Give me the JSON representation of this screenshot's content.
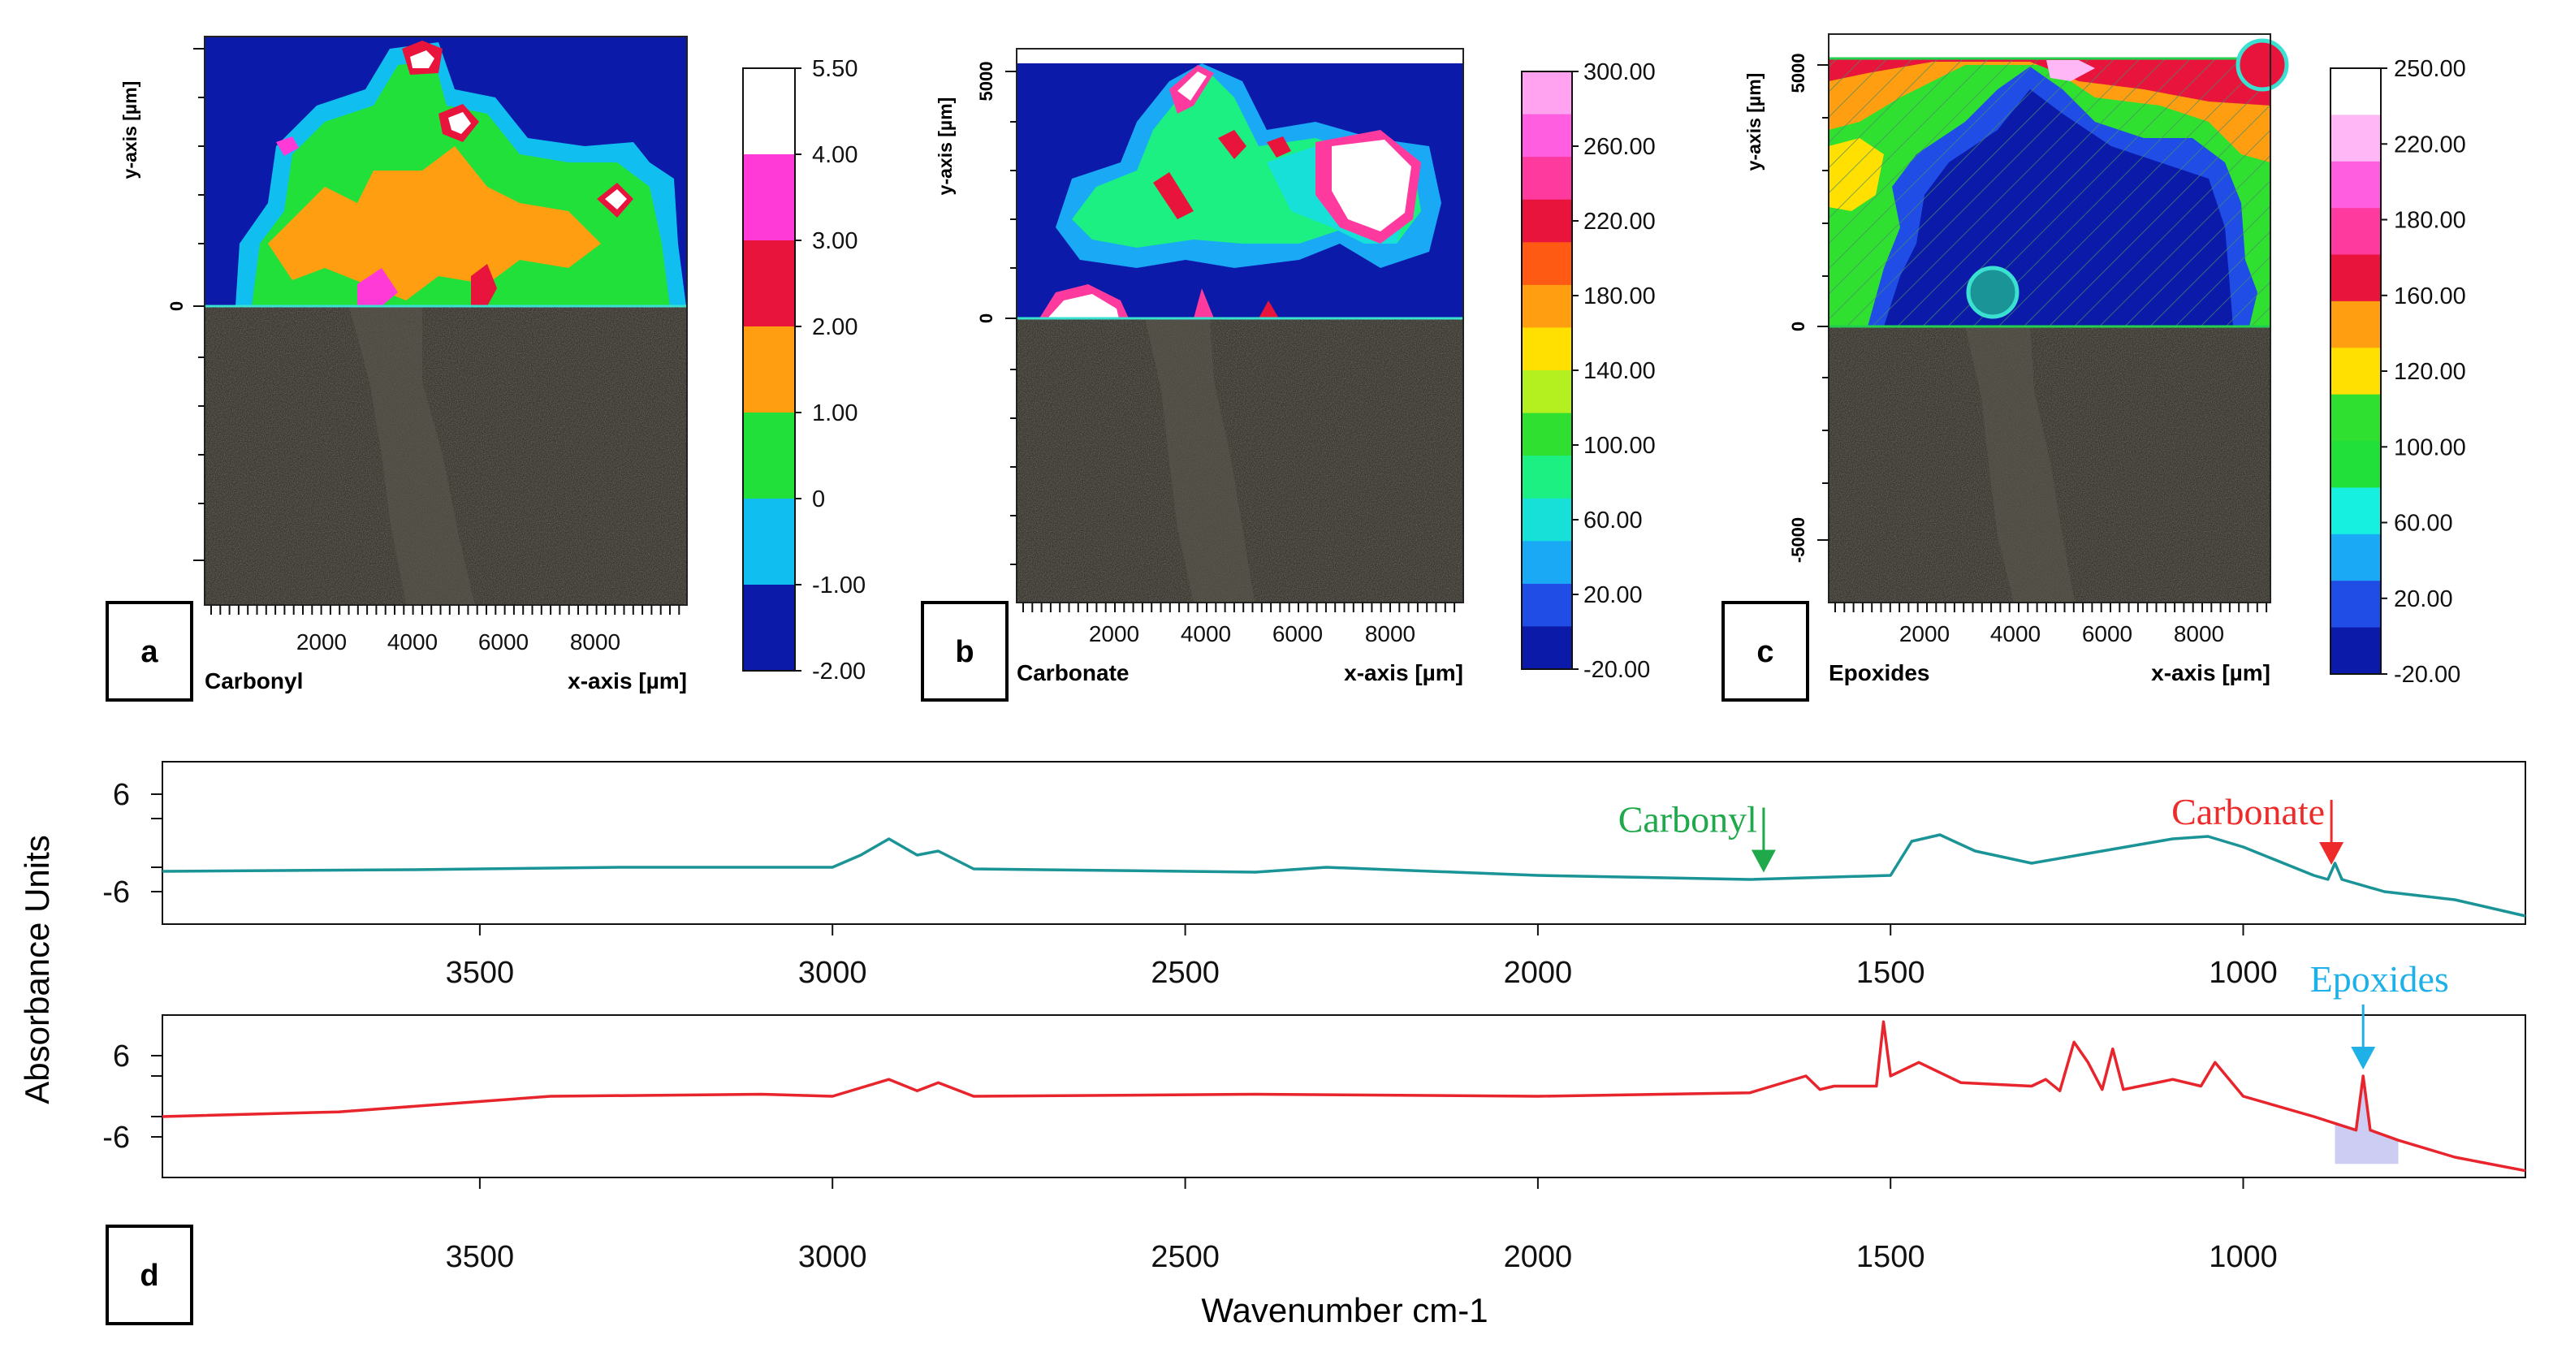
{
  "colors": {
    "map_palette_a": [
      "#0b1aa8",
      "#10bff0",
      "#22e03a",
      "#ff9e10",
      "#e8143c",
      "#ff3ad6",
      "#ffffff"
    ],
    "map_palette_b": [
      "#0b1aa8",
      "#1f4de6",
      "#19a9f5",
      "#16e0d8",
      "#1cf082",
      "#30e030",
      "#b4f020",
      "#ffe000",
      "#ff9e10",
      "#ff5a14",
      "#e8143c",
      "#ff3a9e",
      "#ff5ee0",
      "#ffa3f0"
    ],
    "map_palette_c": [
      "#0b1aa8",
      "#1f4de6",
      "#19a9f5",
      "#16f0e0",
      "#22e03a",
      "#30e030",
      "#ffe000",
      "#ff9e10",
      "#e8143c",
      "#ff3a9e",
      "#ff5ee0",
      "#ffb7f5",
      "#ffffff"
    ],
    "spectrum_top": "#1a9496",
    "spectrum_bottom": "#e8242c",
    "carbonyl_label": "#1fa94a",
    "carbonate_label": "#ee2b2b",
    "epoxides_label": "#1fb0e8",
    "microscopy_bg": "#35322c"
  },
  "panels": [
    {
      "letter": "a",
      "name": "Carbonyl",
      "x_axis_label": "x-axis [µm]",
      "y_axis_label": "y-axis [µm]",
      "x_ticks": [
        "2000",
        "4000",
        "6000",
        "8000"
      ],
      "y_ticks": [
        "0"
      ],
      "colorbar_labels": [
        "5.50",
        "4.00",
        "3.00",
        "2.00",
        "1.00",
        "0",
        "-1.00",
        "-2.00"
      ]
    },
    {
      "letter": "b",
      "name": "Carbonate",
      "x_axis_label": "x-axis [µm]",
      "y_axis_label": "y-axis [µm]",
      "x_ticks": [
        "2000",
        "4000",
        "6000",
        "8000"
      ],
      "y_ticks": [
        "5000",
        "0"
      ],
      "colorbar_labels": [
        "300.00",
        "260.00",
        "220.00",
        "180.00",
        "140.00",
        "100.00",
        "60.00",
        "20.00",
        "-20.00"
      ]
    },
    {
      "letter": "c",
      "name": "Epoxides",
      "x_axis_label": "x-axis [µm]",
      "y_axis_label": "y-axis [µm]",
      "x_ticks": [
        "2000",
        "4000",
        "6000",
        "8000"
      ],
      "y_ticks": [
        "5000",
        "0",
        "-5000"
      ],
      "colorbar_labels": [
        "250.00",
        "220.00",
        "180.00",
        "160.00",
        "120.00",
        "100.00",
        "60.00",
        "20.00",
        "-20.00"
      ]
    }
  ],
  "chart_data": {
    "type": "line",
    "panel_letter": "d",
    "ylabel": "Absorbance Units",
    "xlabel": "Wavenumber cm-1",
    "x_ticks": [
      3500,
      3000,
      2500,
      2000,
      1500,
      1000
    ],
    "x_tick_labels": [
      "3500",
      "3000",
      "2500",
      "2000",
      "1500",
      "1000"
    ],
    "y_tick_labels": [
      "6",
      "-6"
    ],
    "xlim": [
      3950,
      600
    ],
    "series": [
      {
        "name": "top spectrum",
        "color": "#1a9496",
        "x": [
          3950,
          3600,
          3300,
          3000,
          2960,
          2920,
          2880,
          2850,
          2800,
          2400,
          2300,
          2000,
          1700,
          1500,
          1470,
          1430,
          1380,
          1300,
          1200,
          1100,
          1050,
          1000,
          900,
          880,
          870,
          860,
          800,
          700,
          600
        ],
        "y": [
          -3.5,
          -3.3,
          -3.0,
          -3.0,
          -1.5,
          0.5,
          -1.5,
          -1.0,
          -3.2,
          -3.6,
          -3.0,
          -4.0,
          -4.5,
          -4.0,
          0.2,
          1.0,
          -1.0,
          -2.5,
          -1.0,
          0.5,
          0.8,
          -0.5,
          -4.0,
          -4.5,
          -2.5,
          -4.5,
          -6.0,
          -7.0,
          -9.0
        ]
      },
      {
        "name": "bottom spectrum",
        "color": "#e8242c",
        "x": [
          3950,
          3700,
          3400,
          3100,
          3000,
          2920,
          2880,
          2850,
          2800,
          2400,
          2000,
          1700,
          1620,
          1600,
          1580,
          1520,
          1510,
          1500,
          1460,
          1400,
          1300,
          1280,
          1260,
          1240,
          1220,
          1200,
          1185,
          1170,
          1100,
          1060,
          1040,
          1000,
          900,
          840,
          830,
          820,
          780,
          700,
          600
        ],
        "y": [
          -3.0,
          -2.3,
          0.0,
          0.3,
          0.0,
          2.5,
          0.8,
          2.0,
          0.0,
          0.3,
          0.0,
          0.5,
          3.0,
          1.0,
          1.5,
          1.5,
          11.0,
          3.0,
          5.0,
          2.0,
          1.5,
          2.5,
          0.8,
          8.0,
          5.0,
          1.0,
          7.0,
          1.0,
          2.5,
          1.5,
          5.0,
          0.0,
          -3.0,
          -5.0,
          3.0,
          -5.0,
          -6.5,
          -9.0,
          -11.0
        ]
      }
    ],
    "annotations": [
      {
        "text": "Carbonyl",
        "x": 1680,
        "series": "top spectrum",
        "color": "#1fa94a"
      },
      {
        "text": "Carbonate",
        "x": 875,
        "series": "top spectrum",
        "color": "#ee2b2b"
      },
      {
        "text": "Epoxides",
        "x": 830,
        "series": "bottom spectrum",
        "color": "#1fb0e8"
      }
    ]
  }
}
